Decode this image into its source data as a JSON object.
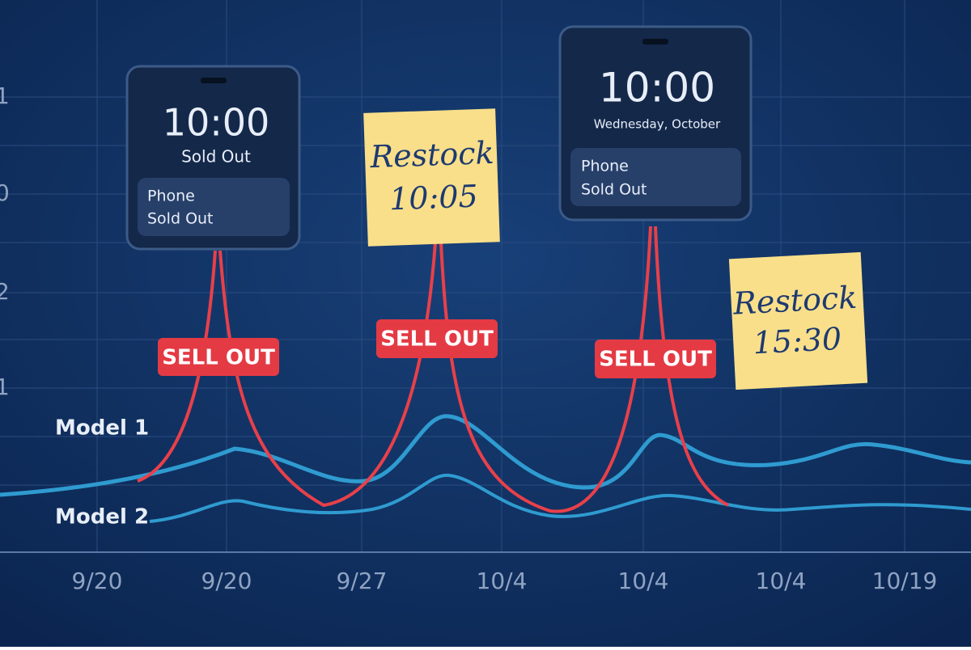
{
  "y_axis_labels": [
    "1",
    "0",
    "2",
    "1"
  ],
  "x_axis_labels": [
    "9/20",
    "9/20",
    "9/27",
    "10/4",
    "10/4",
    "10/4",
    "10/19"
  ],
  "series_labels": [
    "Model 1",
    "Model 2"
  ],
  "phones": [
    {
      "time": "10:00",
      "subtitle": "Sold Out",
      "notification": [
        "Phone",
        "Sold Out"
      ]
    },
    {
      "time": "10:00",
      "subtitle": "Wednesday, October",
      "notification": [
        "Phone",
        "Sold Out"
      ]
    }
  ],
  "notes": [
    {
      "lines": [
        "Restock",
        "10:05"
      ]
    },
    {
      "lines": [
        "Restock",
        "15:30"
      ]
    }
  ],
  "badges": [
    "SELL OUT",
    "SELL OUT",
    "SELL OUT"
  ]
}
